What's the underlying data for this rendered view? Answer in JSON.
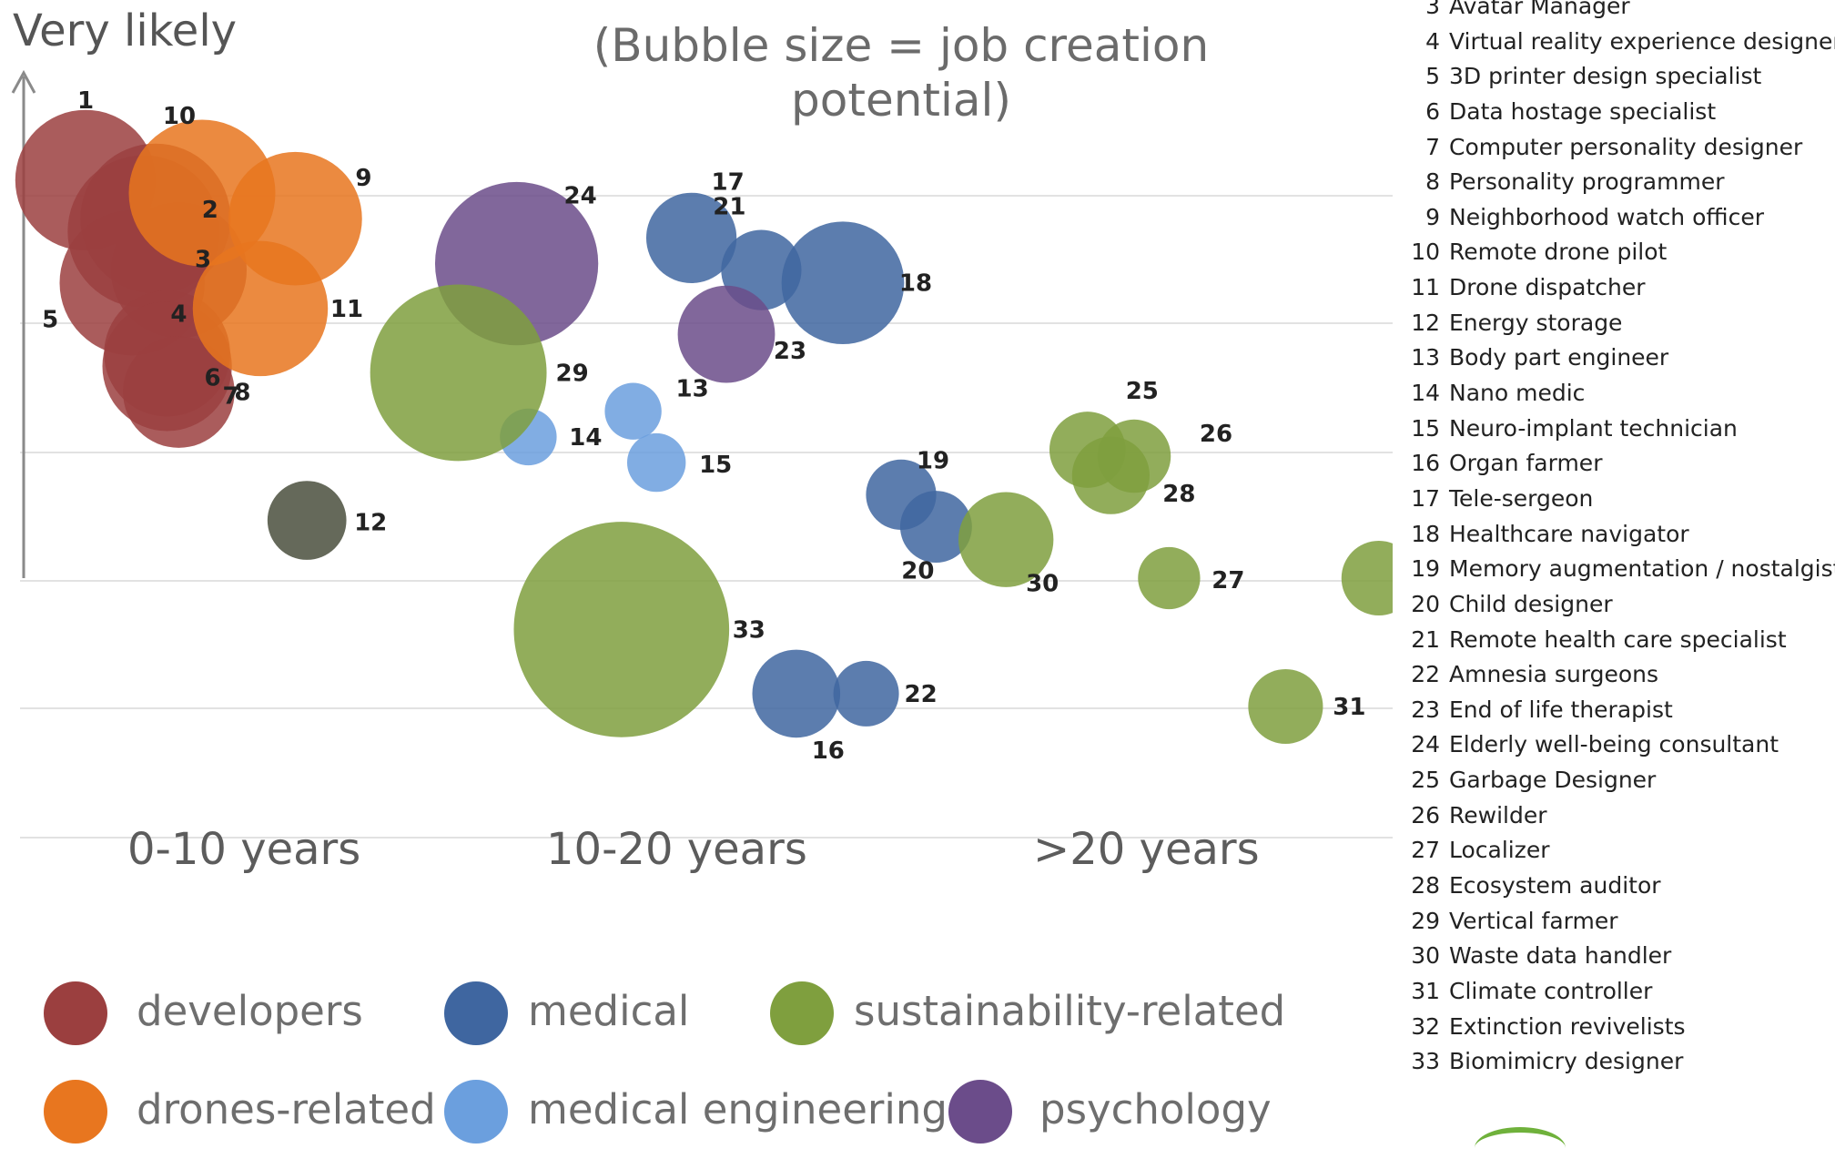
{
  "y_axis_label": "Very likely",
  "subtitle": "(Bubble size = job creation potential)",
  "period_labels": [
    "0-10 years",
    "10-20 years",
    ">20 years"
  ],
  "categories": [
    {
      "key": "developers",
      "label": "developers",
      "color": "#9b3f3f"
    },
    {
      "key": "medical",
      "label": "medical",
      "color": "#3f66a0"
    },
    {
      "key": "sustainability",
      "label": "sustainability-related",
      "color": "#7f9f3e"
    },
    {
      "key": "drones",
      "label": "drones-related",
      "color": "#e8761f"
    },
    {
      "key": "medeng",
      "label": "medical engineering",
      "color": "#6b9fde"
    },
    {
      "key": "psychology",
      "label": "psychology",
      "color": "#6b4c8a"
    },
    {
      "key": "other",
      "label": "",
      "color": "#4a4f3d"
    }
  ],
  "job_list": [
    {
      "num": "3",
      "title": "Avatar Manager"
    },
    {
      "num": "4",
      "title": "Virtual reality experience designer"
    },
    {
      "num": "5",
      "title": "3D printer design specialist"
    },
    {
      "num": "6",
      "title": "Data hostage specialist"
    },
    {
      "num": "7",
      "title": "Computer personality designer"
    },
    {
      "num": "8",
      "title": "Personality programmer"
    },
    {
      "num": "9",
      "title": "Neighborhood watch officer"
    },
    {
      "num": "10",
      "title": "Remote drone pilot"
    },
    {
      "num": "11",
      "title": "Drone dispatcher"
    },
    {
      "num": "12",
      "title": "Energy storage"
    },
    {
      "num": "13",
      "title": "Body part engineer"
    },
    {
      "num": "14",
      "title": "Nano medic"
    },
    {
      "num": "15",
      "title": "Neuro-implant technician"
    },
    {
      "num": "16",
      "title": "Organ farmer"
    },
    {
      "num": "17",
      "title": "Tele-sergeon"
    },
    {
      "num": "18",
      "title": "Healthcare navigator"
    },
    {
      "num": "19",
      "title": "Memory augmentation / nostalgist"
    },
    {
      "num": "20",
      "title": "Child designer"
    },
    {
      "num": "21",
      "title": "Remote health care specialist"
    },
    {
      "num": "22",
      "title": "Amnesia surgeons"
    },
    {
      "num": "23",
      "title": "End of life therapist"
    },
    {
      "num": "24",
      "title": "Elderly well-being consultant"
    },
    {
      "num": "25",
      "title": "Garbage Designer"
    },
    {
      "num": "26",
      "title": "Rewilder"
    },
    {
      "num": "27",
      "title": "Localizer"
    },
    {
      "num": "28",
      "title": "Ecosystem auditor"
    },
    {
      "num": "29",
      "title": "Vertical farmer"
    },
    {
      "num": "30",
      "title": "Waste data handler"
    },
    {
      "num": "31",
      "title": "Climate controller"
    },
    {
      "num": "32",
      "title": "Extinction revivelists"
    },
    {
      "num": "33",
      "title": "Biomimicry designer"
    }
  ],
  "chart_data": {
    "type": "scatter",
    "title": "",
    "subtitle": "(Bubble size = job creation potential)",
    "ylabel": "Very likely",
    "x_categories": [
      "0-10 years",
      "10-20 years",
      ">20 years"
    ],
    "bubble_size_meaning": "job creation potential",
    "grid": true,
    "legend_placement": "bottom",
    "points": [
      {
        "id": "1",
        "category": "developers",
        "x": 0.25,
        "y": 3.1,
        "size": 9.2
      },
      {
        "id": "2",
        "category": "developers",
        "x": 0.55,
        "y": 2.8,
        "size": 10.5
      },
      {
        "id": "3",
        "category": "developers",
        "x": 0.5,
        "y": 2.7,
        "size": 10.8
      },
      {
        "id": "4",
        "category": "developers",
        "x": 0.65,
        "y": 2.4,
        "size": 8.6
      },
      {
        "id": "5",
        "category": "developers",
        "x": 0.45,
        "y": 2.3,
        "size": 9.8
      },
      {
        "id": "6",
        "category": "developers",
        "x": 0.6,
        "y": 1.75,
        "size": 7.4
      },
      {
        "id": "7",
        "category": "developers",
        "x": 0.6,
        "y": 1.65,
        "size": 7.8
      },
      {
        "id": "8",
        "category": "developers",
        "x": 0.65,
        "y": 1.45,
        "size": 5.8
      },
      {
        "id": "9",
        "category": "drones",
        "x": 1.15,
        "y": 2.8,
        "size": 8.3
      },
      {
        "id": "10",
        "category": "drones",
        "x": 0.75,
        "y": 3.0,
        "size": 10.0
      },
      {
        "id": "11",
        "category": "drones",
        "x": 1.0,
        "y": 2.1,
        "size": 8.5
      },
      {
        "id": "12",
        "category": "other",
        "x": 1.2,
        "y": 0.45,
        "size": 2.9
      },
      {
        "id": "13",
        "category": "medeng",
        "x": 2.6,
        "y": 1.3,
        "size": 1.5
      },
      {
        "id": "14",
        "category": "medeng",
        "x": 2.15,
        "y": 1.1,
        "size": 1.5
      },
      {
        "id": "15",
        "category": "medeng",
        "x": 2.7,
        "y": 0.9,
        "size": 1.6
      },
      {
        "id": "16",
        "category": "medical",
        "x": 3.3,
        "y": -0.9,
        "size": 3.6
      },
      {
        "id": "17",
        "category": "medical",
        "x": 2.85,
        "y": 2.65,
        "size": 3.8
      },
      {
        "id": "18",
        "category": "medical",
        "x": 3.5,
        "y": 2.3,
        "size": 7.0
      },
      {
        "id": "19",
        "category": "medical",
        "x": 3.75,
        "y": 0.65,
        "size": 2.3
      },
      {
        "id": "20",
        "category": "medical",
        "x": 3.9,
        "y": 0.4,
        "size": 2.4
      },
      {
        "id": "21",
        "category": "medical",
        "x": 3.15,
        "y": 2.4,
        "size": 3.0
      },
      {
        "id": "22",
        "category": "medical",
        "x": 3.6,
        "y": -0.9,
        "size": 2.0
      },
      {
        "id": "23",
        "category": "psychology",
        "x": 3.0,
        "y": 1.9,
        "size": 4.4
      },
      {
        "id": "24",
        "category": "psychology",
        "x": 2.1,
        "y": 2.45,
        "size": 12.4
      },
      {
        "id": "25",
        "category": "sustainability",
        "x": 4.55,
        "y": 1.0,
        "size": 2.7
      },
      {
        "id": "26",
        "category": "sustainability",
        "x": 4.75,
        "y": 0.95,
        "size": 2.5
      },
      {
        "id": "27",
        "category": "sustainability",
        "x": 4.9,
        "y": 0.0,
        "size": 1.8
      },
      {
        "id": "28",
        "category": "sustainability",
        "x": 4.65,
        "y": 0.8,
        "size": 2.8
      },
      {
        "id": "29",
        "category": "sustainability",
        "x": 1.85,
        "y": 1.6,
        "size": 14.5
      },
      {
        "id": "30",
        "category": "sustainability",
        "x": 4.2,
        "y": 0.3,
        "size": 4.2
      },
      {
        "id": "31",
        "category": "sustainability",
        "x": 5.4,
        "y": -1.0,
        "size": 2.6
      },
      {
        "id": "32",
        "category": "sustainability",
        "x": 5.8,
        "y": 0.0,
        "size": 2.6
      },
      {
        "id": "33",
        "category": "sustainability",
        "x": 2.55,
        "y": -0.4,
        "size": 21.6
      }
    ]
  }
}
